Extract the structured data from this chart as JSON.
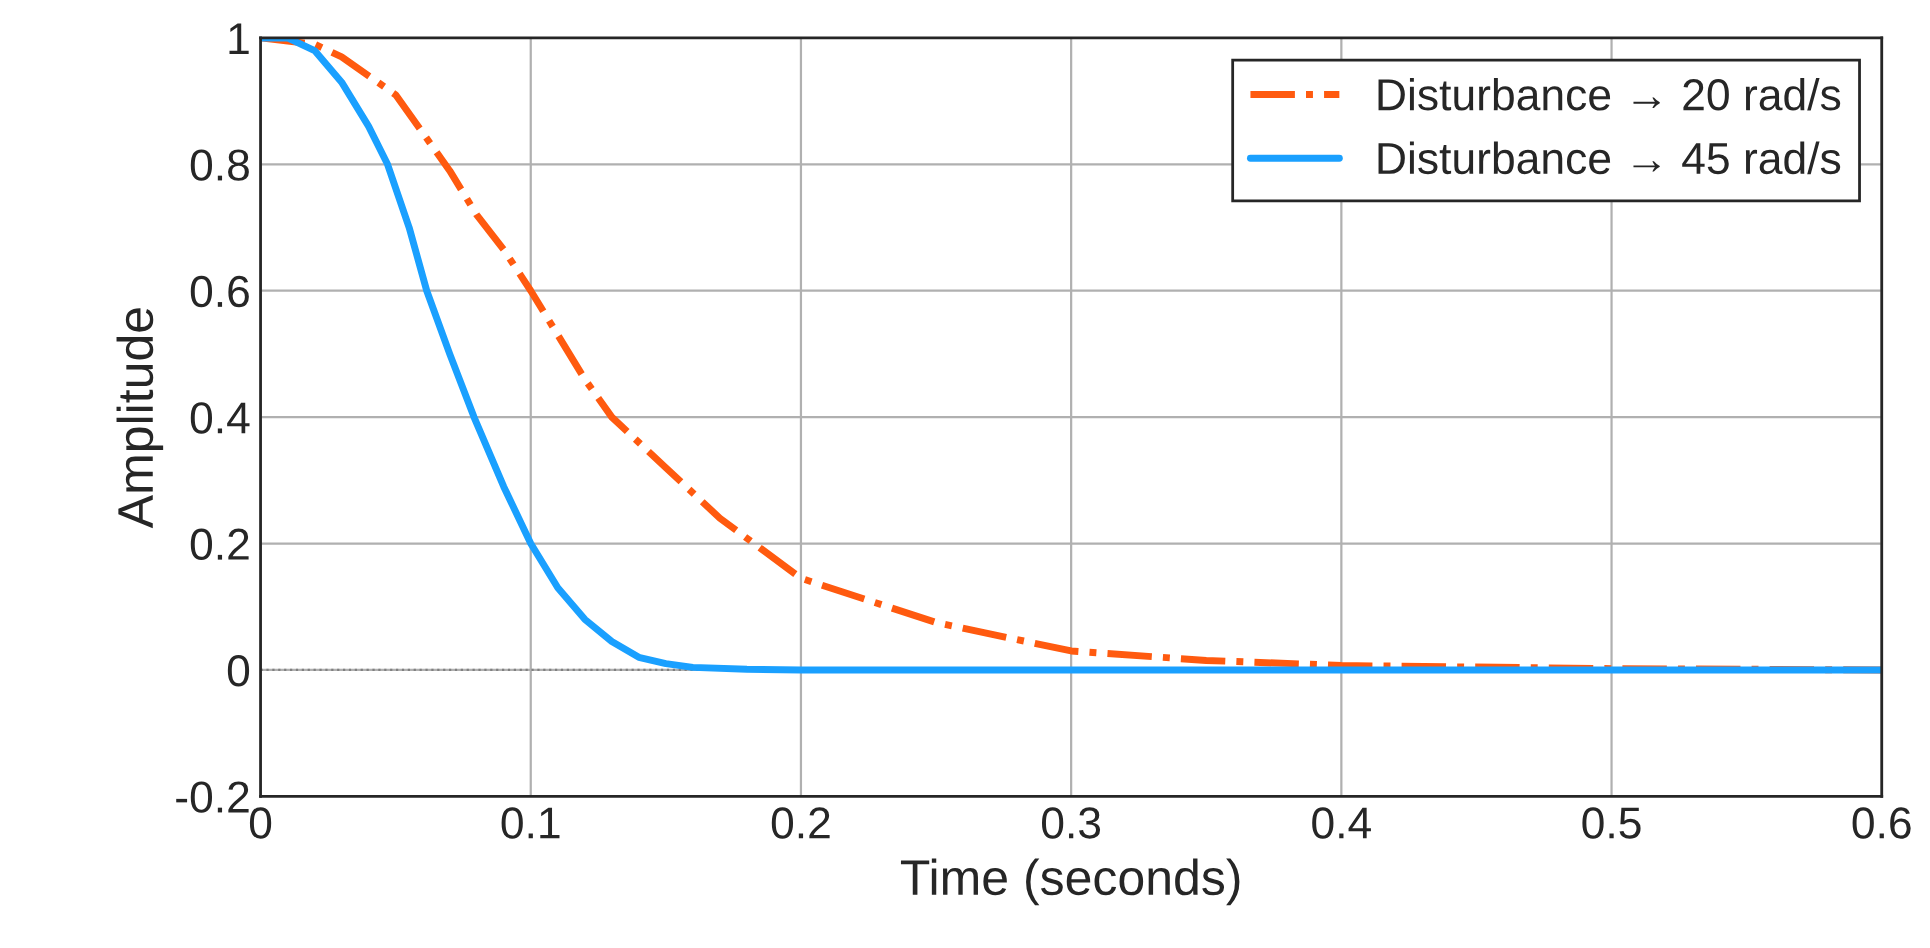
{
  "chart_data": {
    "type": "line",
    "xlabel": "Time (seconds)",
    "ylabel": "Amplitude",
    "xlim": [
      0,
      0.6
    ],
    "ylim": [
      -0.2,
      1
    ],
    "xticks": [
      0,
      0.1,
      0.2,
      0.3,
      0.4,
      0.5,
      0.6
    ],
    "yticks": [
      -0.2,
      0,
      0.2,
      0.4,
      0.6,
      0.8,
      1
    ],
    "grid": true,
    "legend": "top right",
    "ref_lines": [
      {
        "axis": "y",
        "value": 0,
        "line_style": "dotted",
        "color": "#808080"
      }
    ],
    "series": [
      {
        "name": "Disturbance → 20 rad/s",
        "color": "#ff5a0f",
        "line_style": "dashdot",
        "x": [
          0,
          0.02,
          0.03,
          0.04,
          0.05,
          0.06,
          0.07,
          0.08,
          0.09,
          0.1,
          0.12,
          0.13,
          0.15,
          0.17,
          0.2,
          0.25,
          0.3,
          0.35,
          0.4,
          0.5,
          0.6
        ],
        "values": [
          1,
          0.99,
          0.97,
          0.94,
          0.91,
          0.85,
          0.79,
          0.72,
          0.665,
          0.6,
          0.46,
          0.4,
          0.32,
          0.24,
          0.145,
          0.075,
          0.03,
          0.015,
          0.007,
          0.002,
          0
        ]
      },
      {
        "name": "Disturbance → 45 rad/s",
        "color": "#1aa0ff",
        "line_style": "solid",
        "x": [
          0,
          0.01,
          0.02,
          0.03,
          0.04,
          0.047,
          0.055,
          0.0615,
          0.07,
          0.079,
          0.09,
          0.1,
          0.11,
          0.12,
          0.13,
          0.14,
          0.15,
          0.16,
          0.18,
          0.2,
          0.6
        ],
        "values": [
          1,
          1,
          0.98,
          0.93,
          0.86,
          0.8,
          0.7,
          0.6,
          0.5,
          0.4,
          0.29,
          0.2,
          0.13,
          0.08,
          0.045,
          0.02,
          0.01,
          0.004,
          0.001,
          0,
          0
        ]
      }
    ]
  }
}
